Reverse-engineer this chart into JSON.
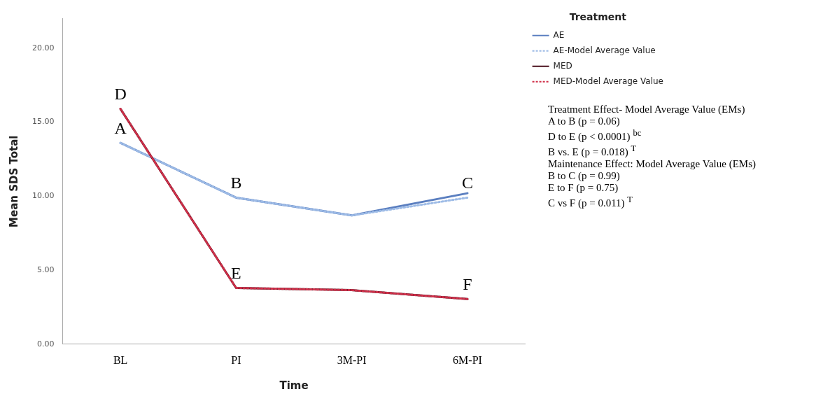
{
  "chart_data": {
    "type": "line",
    "categories": [
      "BL",
      "PI",
      "3M-PI",
      "6M-PI"
    ],
    "xlabel": "Time",
    "ylabel": "Mean SDS Total",
    "legend_title": "Treatment",
    "series": [
      {
        "name": "AE",
        "color": "#5b7fc0",
        "line_style": "solid",
        "values": [
          13.6,
          9.9,
          8.7,
          10.2
        ]
      },
      {
        "name": "AE-Model Average Value",
        "color": "#9dbbe6",
        "line_style": "dotted",
        "values": [
          13.6,
          9.9,
          8.7,
          9.9
        ]
      },
      {
        "name": "MED",
        "color": "#4a0f1c",
        "line_style": "solid",
        "values": [
          15.9,
          3.8,
          3.65,
          3.05
        ]
      },
      {
        "name": "MED-Model Average Value",
        "color": "#d0304a",
        "line_style": "dotted",
        "values": [
          15.9,
          3.8,
          3.65,
          3.05
        ]
      }
    ],
    "ylim": [
      0,
      22
    ],
    "yticks": [
      {
        "value": 0,
        "label": "0.00"
      },
      {
        "value": 5,
        "label": "5.00"
      },
      {
        "value": 10,
        "label": "10.00"
      },
      {
        "value": 15,
        "label": "15.00"
      },
      {
        "value": 20,
        "label": "20.00"
      }
    ],
    "grid": false,
    "legend": "top right",
    "marker": "none",
    "annotations": [
      {
        "text": "A",
        "x": "BL",
        "y": 13.6
      },
      {
        "text": "B",
        "x": "PI",
        "y": 9.9
      },
      {
        "text": "C",
        "x": "6M-PI",
        "y": 9.9
      },
      {
        "text": "D",
        "x": "BL",
        "y": 15.9
      },
      {
        "text": "E",
        "x": "PI",
        "y": 3.8
      },
      {
        "text": "F",
        "x": "6M-PI",
        "y": 3.05
      },
      "Treatment Effect- Model Average Value (EMs)",
      "A to B (p = 0.06)",
      "D to E (p < 0.0001) $^{bc}$",
      "B vs. E (p = 0.018) $^{T}$",
      "Maintenance Effect: Model Average Value (EMs)",
      "B to C (p = 0.99)",
      "E to F (p = 0.75)",
      "C vs F (p = 0.011) $^{T}$"
    ]
  }
}
